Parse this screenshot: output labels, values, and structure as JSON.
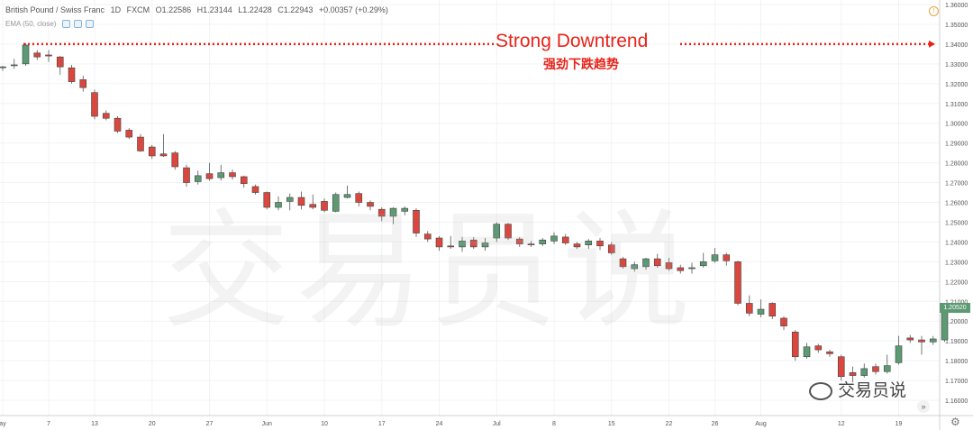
{
  "header": {
    "symbol": "British Pound / Swiss Franc",
    "interval": "1D",
    "exchange": "FXCM",
    "open": "O1.22586",
    "high": "H1.23144",
    "low": "L1.22428",
    "close": "C1.22943",
    "change": "+0.00357 (+0.29%)",
    "ema_label": "EMA (50, close)"
  },
  "annotation": {
    "title": "Strong Downtrend",
    "subtitle": "强劲下跌趋势"
  },
  "watermark": {
    "big": "交易员说",
    "small": "交易员说"
  },
  "colors": {
    "bull": "#5b9a73",
    "bear": "#d9473f",
    "annotation": "#e8231a"
  },
  "controls": {
    "scroll_icon": "»",
    "settings_icon": "⚙",
    "alert_icon": "!"
  },
  "chart_data": {
    "type": "candlestick",
    "ylim": [
      1.155,
      1.36
    ],
    "y_ticks": [
      "1.36000",
      "1.35000",
      "1.34000",
      "1.33000",
      "1.32000",
      "1.31000",
      "1.30000",
      "1.29000",
      "1.28000",
      "1.27000",
      "1.26000",
      "1.25000",
      "1.24000",
      "1.23000",
      "1.22000",
      "1.21000",
      "1.20000",
      "1.19000",
      "1.18000",
      "1.17000",
      "1.16000"
    ],
    "x_ticks": [
      {
        "label": "ay",
        "index": 0
      },
      {
        "label": "7",
        "index": 4
      },
      {
        "label": "13",
        "index": 8
      },
      {
        "label": "20",
        "index": 13
      },
      {
        "label": "27",
        "index": 18
      },
      {
        "label": "Jun",
        "index": 23
      },
      {
        "label": "10",
        "index": 28
      },
      {
        "label": "17",
        "index": 33
      },
      {
        "label": "24",
        "index": 38
      },
      {
        "label": "Jul",
        "index": 43
      },
      {
        "label": "8",
        "index": 48
      },
      {
        "label": "15",
        "index": 53
      },
      {
        "label": "22",
        "index": 58
      },
      {
        "label": "26",
        "index": 62
      },
      {
        "label": "Aug",
        "index": 66
      },
      {
        "label": "12",
        "index": 73
      },
      {
        "label": "19",
        "index": 78
      }
    ],
    "last_price": "1.20520",
    "reference_level": 1.34,
    "candles": [
      {
        "o": 1.3285,
        "h": 1.329,
        "l": 1.3265,
        "c": 1.3285
      },
      {
        "o": 1.3295,
        "h": 1.3325,
        "l": 1.3275,
        "c": 1.3295
      },
      {
        "o": 1.33,
        "h": 1.3405,
        "l": 1.329,
        "c": 1.3395
      },
      {
        "o": 1.3355,
        "h": 1.337,
        "l": 1.332,
        "c": 1.3335
      },
      {
        "o": 1.3345,
        "h": 1.337,
        "l": 1.331,
        "c": 1.334
      },
      {
        "o": 1.3335,
        "h": 1.334,
        "l": 1.3245,
        "c": 1.3285
      },
      {
        "o": 1.328,
        "h": 1.3295,
        "l": 1.32,
        "c": 1.321
      },
      {
        "o": 1.322,
        "h": 1.324,
        "l": 1.316,
        "c": 1.318
      },
      {
        "o": 1.3155,
        "h": 1.317,
        "l": 1.302,
        "c": 1.3035
      },
      {
        "o": 1.305,
        "h": 1.3065,
        "l": 1.3015,
        "c": 1.3025
      },
      {
        "o": 1.3025,
        "h": 1.3035,
        "l": 1.295,
        "c": 1.296
      },
      {
        "o": 1.2965,
        "h": 1.2975,
        "l": 1.292,
        "c": 1.293
      },
      {
        "o": 1.293,
        "h": 1.2945,
        "l": 1.2855,
        "c": 1.286
      },
      {
        "o": 1.288,
        "h": 1.289,
        "l": 1.282,
        "c": 1.2835
      },
      {
        "o": 1.2845,
        "h": 1.2945,
        "l": 1.283,
        "c": 1.2835
      },
      {
        "o": 1.285,
        "h": 1.286,
        "l": 1.2765,
        "c": 1.278
      },
      {
        "o": 1.2775,
        "h": 1.279,
        "l": 1.268,
        "c": 1.27
      },
      {
        "o": 1.2705,
        "h": 1.276,
        "l": 1.269,
        "c": 1.2735
      },
      {
        "o": 1.2745,
        "h": 1.28,
        "l": 1.271,
        "c": 1.272
      },
      {
        "o": 1.2725,
        "h": 1.279,
        "l": 1.271,
        "c": 1.275
      },
      {
        "o": 1.275,
        "h": 1.2765,
        "l": 1.2715,
        "c": 1.273
      },
      {
        "o": 1.273,
        "h": 1.2735,
        "l": 1.2675,
        "c": 1.2695
      },
      {
        "o": 1.268,
        "h": 1.269,
        "l": 1.264,
        "c": 1.265
      },
      {
        "o": 1.265,
        "h": 1.2655,
        "l": 1.2565,
        "c": 1.2575
      },
      {
        "o": 1.2575,
        "h": 1.263,
        "l": 1.256,
        "c": 1.26
      },
      {
        "o": 1.2605,
        "h": 1.2645,
        "l": 1.256,
        "c": 1.2625
      },
      {
        "o": 1.2625,
        "h": 1.2655,
        "l": 1.2565,
        "c": 1.2585
      },
      {
        "o": 1.259,
        "h": 1.264,
        "l": 1.2565,
        "c": 1.2575
      },
      {
        "o": 1.2605,
        "h": 1.262,
        "l": 1.255,
        "c": 1.256
      },
      {
        "o": 1.2555,
        "h": 1.265,
        "l": 1.255,
        "c": 1.264
      },
      {
        "o": 1.2625,
        "h": 1.2685,
        "l": 1.262,
        "c": 1.264
      },
      {
        "o": 1.2645,
        "h": 1.2655,
        "l": 1.258,
        "c": 1.26
      },
      {
        "o": 1.26,
        "h": 1.261,
        "l": 1.256,
        "c": 1.258
      },
      {
        "o": 1.2565,
        "h": 1.2575,
        "l": 1.2505,
        "c": 1.253
      },
      {
        "o": 1.253,
        "h": 1.2575,
        "l": 1.249,
        "c": 1.257
      },
      {
        "o": 1.2555,
        "h": 1.258,
        "l": 1.2535,
        "c": 1.257
      },
      {
        "o": 1.256,
        "h": 1.257,
        "l": 1.2425,
        "c": 1.2445
      },
      {
        "o": 1.244,
        "h": 1.2455,
        "l": 1.24,
        "c": 1.2415
      },
      {
        "o": 1.242,
        "h": 1.243,
        "l": 1.2355,
        "c": 1.2375
      },
      {
        "o": 1.238,
        "h": 1.243,
        "l": 1.2365,
        "c": 1.2375
      },
      {
        "o": 1.2375,
        "h": 1.2425,
        "l": 1.235,
        "c": 1.2405
      },
      {
        "o": 1.241,
        "h": 1.2425,
        "l": 1.2365,
        "c": 1.2375
      },
      {
        "o": 1.2375,
        "h": 1.242,
        "l": 1.2355,
        "c": 1.2395
      },
      {
        "o": 1.242,
        "h": 1.25,
        "l": 1.24,
        "c": 1.249
      },
      {
        "o": 1.249,
        "h": 1.2495,
        "l": 1.241,
        "c": 1.242
      },
      {
        "o": 1.2415,
        "h": 1.2425,
        "l": 1.2375,
        "c": 1.239
      },
      {
        "o": 1.239,
        "h": 1.2405,
        "l": 1.2375,
        "c": 1.2385
      },
      {
        "o": 1.239,
        "h": 1.242,
        "l": 1.238,
        "c": 1.241
      },
      {
        "o": 1.2405,
        "h": 1.245,
        "l": 1.239,
        "c": 1.243
      },
      {
        "o": 1.2425,
        "h": 1.244,
        "l": 1.2385,
        "c": 1.2395
      },
      {
        "o": 1.239,
        "h": 1.24,
        "l": 1.2365,
        "c": 1.2375
      },
      {
        "o": 1.2385,
        "h": 1.2415,
        "l": 1.2365,
        "c": 1.2405
      },
      {
        "o": 1.2405,
        "h": 1.242,
        "l": 1.236,
        "c": 1.238
      },
      {
        "o": 1.2385,
        "h": 1.24,
        "l": 1.2335,
        "c": 1.2345
      },
      {
        "o": 1.2315,
        "h": 1.2325,
        "l": 1.2265,
        "c": 1.2275
      },
      {
        "o": 1.2265,
        "h": 1.23,
        "l": 1.225,
        "c": 1.2285
      },
      {
        "o": 1.2275,
        "h": 1.232,
        "l": 1.226,
        "c": 1.2315
      },
      {
        "o": 1.2315,
        "h": 1.234,
        "l": 1.227,
        "c": 1.228
      },
      {
        "o": 1.2295,
        "h": 1.232,
        "l": 1.2255,
        "c": 1.2265
      },
      {
        "o": 1.227,
        "h": 1.2285,
        "l": 1.224,
        "c": 1.2255
      },
      {
        "o": 1.2265,
        "h": 1.2295,
        "l": 1.224,
        "c": 1.227
      },
      {
        "o": 1.228,
        "h": 1.2345,
        "l": 1.227,
        "c": 1.23
      },
      {
        "o": 1.2305,
        "h": 1.237,
        "l": 1.2295,
        "c": 1.2335
      },
      {
        "o": 1.2335,
        "h": 1.2345,
        "l": 1.228,
        "c": 1.2305
      },
      {
        "o": 1.23,
        "h": 1.2305,
        "l": 1.208,
        "c": 1.209
      },
      {
        "o": 1.209,
        "h": 1.213,
        "l": 1.2025,
        "c": 1.204
      },
      {
        "o": 1.2035,
        "h": 1.211,
        "l": 1.202,
        "c": 1.206
      },
      {
        "o": 1.209,
        "h": 1.2095,
        "l": 1.201,
        "c": 1.2025
      },
      {
        "o": 1.2015,
        "h": 1.2025,
        "l": 1.1955,
        "c": 1.1975
      },
      {
        "o": 1.1945,
        "h": 1.1955,
        "l": 1.18,
        "c": 1.182
      },
      {
        "o": 1.182,
        "h": 1.189,
        "l": 1.181,
        "c": 1.187
      },
      {
        "o": 1.1875,
        "h": 1.1885,
        "l": 1.184,
        "c": 1.1855
      },
      {
        "o": 1.1845,
        "h": 1.1855,
        "l": 1.182,
        "c": 1.1835
      },
      {
        "o": 1.182,
        "h": 1.183,
        "l": 1.17,
        "c": 1.172
      },
      {
        "o": 1.174,
        "h": 1.177,
        "l": 1.169,
        "c": 1.1725
      },
      {
        "o": 1.1725,
        "h": 1.1785,
        "l": 1.1715,
        "c": 1.176
      },
      {
        "o": 1.177,
        "h": 1.1785,
        "l": 1.173,
        "c": 1.1745
      },
      {
        "o": 1.1745,
        "h": 1.183,
        "l": 1.1735,
        "c": 1.1775
      },
      {
        "o": 1.179,
        "h": 1.1925,
        "l": 1.178,
        "c": 1.1875
      },
      {
        "o": 1.1915,
        "h": 1.193,
        "l": 1.189,
        "c": 1.1905
      },
      {
        "o": 1.1905,
        "h": 1.1925,
        "l": 1.183,
        "c": 1.1895
      },
      {
        "o": 1.1895,
        "h": 1.1925,
        "l": 1.188,
        "c": 1.191
      },
      {
        "o": 1.1905,
        "h": 1.206,
        "l": 1.1895,
        "c": 1.205
      }
    ]
  }
}
